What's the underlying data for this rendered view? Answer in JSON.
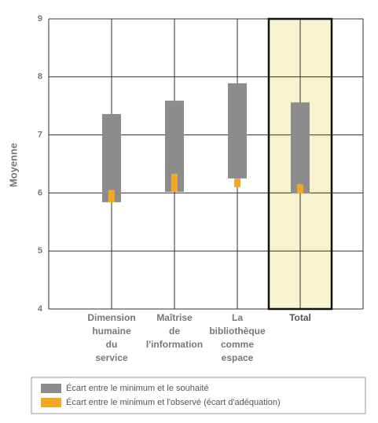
{
  "chart_data": {
    "type": "range-bar",
    "y_label": "Moyenne",
    "categories": [
      [
        "Dimension",
        "humaine",
        "du",
        "service"
      ],
      [
        "Maîtrise",
        "de",
        "l'information"
      ],
      [
        "La",
        "bibliothèque",
        "comme",
        "espace"
      ],
      [
        "Total"
      ]
    ],
    "series": [
      {
        "name": "Écart entre le minimum et le souhaité",
        "color": "#8c8c8c",
        "low": [
          5.84,
          6.02,
          6.25,
          5.99
        ],
        "high": [
          7.36,
          7.59,
          7.89,
          7.56
        ]
      },
      {
        "name": "Écart entre le minimum et l'observé (écart d'adéquation)",
        "color": "#f5a623",
        "low": [
          5.84,
          6.02,
          6.1,
          5.99
        ],
        "high": [
          6.05,
          6.33,
          6.25,
          6.15
        ]
      }
    ],
    "highlight_index": 3,
    "ylim": [
      4,
      9
    ],
    "yticks": [
      4,
      5,
      6,
      7,
      8,
      9
    ],
    "grid": true
  }
}
